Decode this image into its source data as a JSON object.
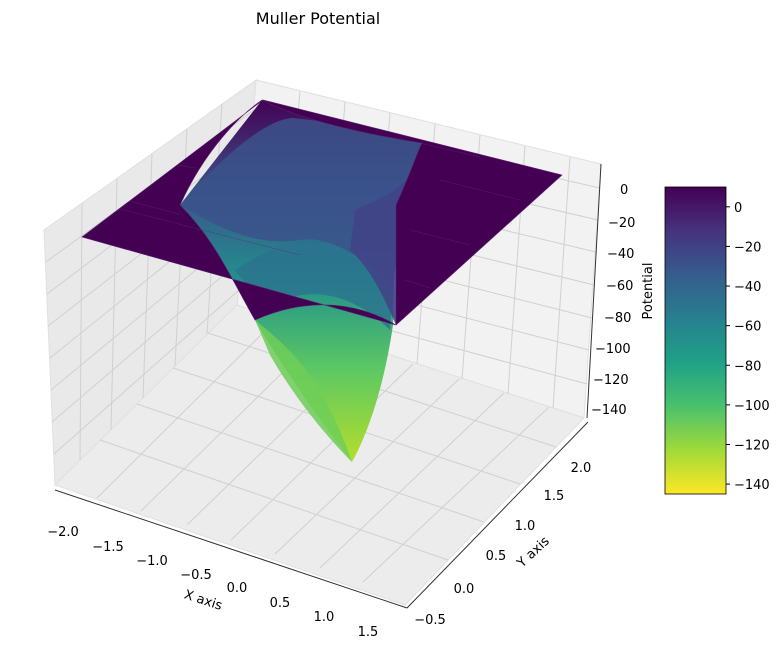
{
  "chart_data": {
    "type": "surface3d",
    "title": "Muller Potential",
    "xlabel": "X axis",
    "ylabel": "Y axis",
    "zlabel": "Potential",
    "xlim": [
      -2.0,
      1.5
    ],
    "ylim": [
      -0.5,
      2.0
    ],
    "zlim": [
      -145,
      10
    ],
    "x_ticks": [
      "−2.0",
      "−1.5",
      "−1.0",
      "−0.5",
      "0.0",
      "0.5",
      "1.0",
      "1.5"
    ],
    "y_ticks": [
      "−0.5",
      "0.0",
      "0.5",
      "1.0",
      "1.5",
      "2.0"
    ],
    "z_ticks": [
      "0",
      "−20",
      "−40",
      "−60",
      "−80",
      "−100",
      "−120",
      "−140"
    ],
    "colormap": "viridis",
    "colorbar": {
      "range": [
        -145,
        10
      ],
      "ticks": [
        "0",
        "−20",
        "−40",
        "−60",
        "−80",
        "−100",
        "−120",
        "−140"
      ],
      "stops": [
        "#fde725",
        "#a0da39",
        "#4ac16d",
        "#1fa187",
        "#277f8e",
        "#365c8d",
        "#46327e",
        "#440154"
      ]
    },
    "surface": {
      "plateau_value": 0,
      "minimum": {
        "x": 0.6,
        "y": 0.0,
        "value": -145
      }
    },
    "grid": true
  }
}
